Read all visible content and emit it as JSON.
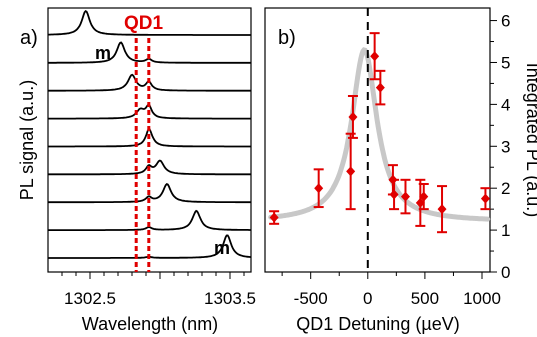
{
  "chart_data": [
    {
      "panel": "a)",
      "type": "line",
      "xlabel": "Wavelength (nm)",
      "ylabel": "PL signal (a.u.)",
      "x_ticks": [
        "1302.5",
        "1303.5"
      ],
      "xlim": [
        1302.2,
        1303.65
      ],
      "annotation_qd": "QD1",
      "annotation_mode": "m",
      "qd_lines_nm": [
        1302.83,
        1302.92
      ],
      "series": [
        {
          "mode_nm": 1302.47,
          "mode_amp": 1.0,
          "qd_amp": 0.0
        },
        {
          "mode_nm": 1302.72,
          "mode_amp": 0.85,
          "qd_amp": 0.15
        },
        {
          "mode_nm": 1302.8,
          "mode_amp": 0.65,
          "qd_amp": 0.35
        },
        {
          "mode_nm": 1302.86,
          "mode_amp": 0.35,
          "qd_amp": 0.5
        },
        {
          "mode_nm": 1302.93,
          "mode_amp": 0.2,
          "qd_amp": 0.55
        },
        {
          "mode_nm": 1303.0,
          "mode_amp": 0.55,
          "qd_amp": 0.3
        },
        {
          "mode_nm": 1303.05,
          "mode_amp": 0.75,
          "qd_amp": 0.2
        },
        {
          "mode_nm": 1303.26,
          "mode_amp": 0.8,
          "qd_amp": 0.12
        },
        {
          "mode_nm": 1303.48,
          "mode_amp": 0.95,
          "qd_amp": 0.05
        }
      ]
    },
    {
      "panel": "b)",
      "type": "scatter",
      "xlabel": "QD1 Detuning (µeV)",
      "ylabel": "Integrated PL (a.u.)",
      "x_ticks": [
        "-500",
        "0",
        "500",
        "1000"
      ],
      "y_ticks": [
        "0",
        "1",
        "2",
        "3",
        "4",
        "5",
        "6"
      ],
      "xlim": [
        -900,
        1070
      ],
      "ylim": [
        0,
        6.3
      ],
      "fit": {
        "center": -30,
        "width": 270,
        "baseline": 1.2,
        "amplitude": 4.1
      },
      "points": [
        {
          "x": -820,
          "y": 1.3,
          "err": 0.15
        },
        {
          "x": -430,
          "y": 2.0,
          "err": 0.45
        },
        {
          "x": -150,
          "y": 2.4,
          "err": 0.9
        },
        {
          "x": -130,
          "y": 3.7,
          "err": 0.5
        },
        {
          "x": 60,
          "y": 5.15,
          "err": 0.55
        },
        {
          "x": 110,
          "y": 4.4,
          "err": 0.4
        },
        {
          "x": 220,
          "y": 2.2,
          "err": 0.35
        },
        {
          "x": 230,
          "y": 1.85,
          "err": 0.35
        },
        {
          "x": 330,
          "y": 1.8,
          "err": 0.4
        },
        {
          "x": 460,
          "y": 1.65,
          "err": 0.55
        },
        {
          "x": 490,
          "y": 1.8,
          "err": 0.3
        },
        {
          "x": 650,
          "y": 1.5,
          "err": 0.55
        },
        {
          "x": 1030,
          "y": 1.75,
          "err": 0.25
        }
      ]
    }
  ],
  "colors": {
    "accent": "#e00000",
    "fit": "#c8c8c8",
    "ink": "#000000"
  }
}
